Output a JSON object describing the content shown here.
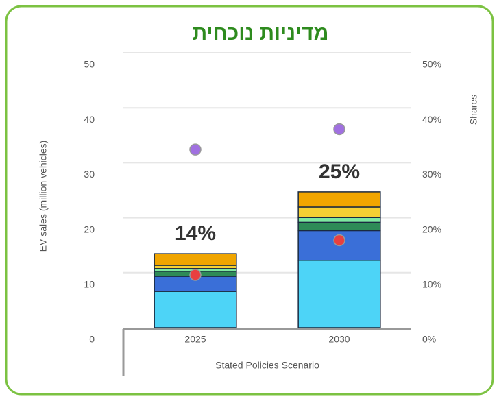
{
  "chart_data": {
    "type": "bar",
    "stacked": true,
    "title": "מדיניות נוכחית",
    "x_label": "Stated Policies Scenario",
    "y_label": "EV sales (million vehicles)",
    "y2_label": "Shares",
    "categories": [
      "2025",
      "2030"
    ],
    "series": [
      {
        "color": "#4dd4f7",
        "values": [
          6.6,
          12.25
        ]
      },
      {
        "color": "#3a6fd8",
        "values": [
          2.75,
          5.4
        ]
      },
      {
        "color": "#2e8b57",
        "values": [
          0.9,
          1.5
        ]
      },
      {
        "color": "#7ee8a0",
        "values": [
          0.5,
          0.9
        ]
      },
      {
        "color": "#f5d033",
        "values": [
          0.6,
          1.9
        ]
      },
      {
        "color": "#f0a500",
        "values": [
          2.1,
          2.75
        ]
      },
      {
        "type": "scatter",
        "axis": "y2",
        "color": "#e84040",
        "values": [
          9.6,
          15.9
        ]
      },
      {
        "type": "scatter",
        "axis": "y2",
        "color": "#a070e0",
        "values": [
          32.4,
          36.1
        ]
      }
    ],
    "annotations": [
      {
        "text": "14%"
      },
      {
        "text": "25%"
      }
    ],
    "ylim": [
      0,
      50
    ],
    "yticks": [
      0,
      10,
      20,
      30,
      40,
      50
    ],
    "y2lim": [
      0,
      50
    ],
    "y2ticks": [
      {
        "value": 0,
        "label": "0%"
      },
      {
        "value": 10,
        "label": "10%"
      },
      {
        "value": 20,
        "label": "20%"
      },
      {
        "value": 30,
        "label": "30%"
      },
      {
        "value": 40,
        "label": "40%"
      },
      {
        "value": 50,
        "label": "50%"
      }
    ],
    "grid": true
  }
}
